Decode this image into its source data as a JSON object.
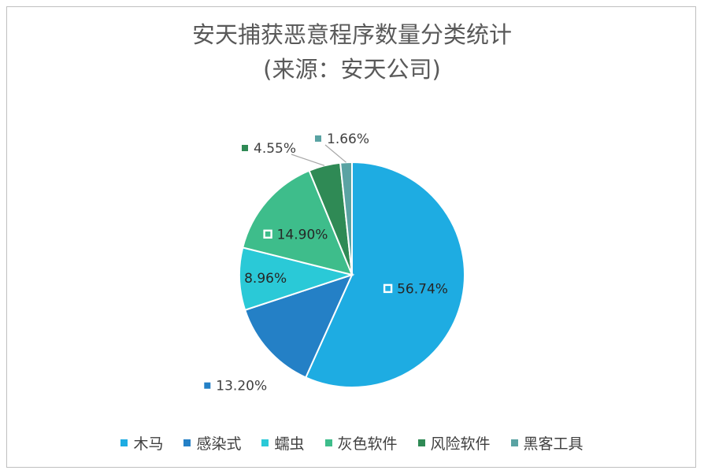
{
  "chart_data": {
    "type": "pie",
    "title": "安天捕获恶意程序数量分类统计",
    "subtitle": "(来源：安天公司)",
    "categories": [
      "木马",
      "感染式",
      "蠕虫",
      "灰色软件",
      "风险软件",
      "黑客工具"
    ],
    "values": [
      56.74,
      13.2,
      8.96,
      14.9,
      4.55,
      1.66
    ],
    "data_labels": [
      "56.74%",
      "13.20%",
      "8.96%",
      "14.90%",
      "4.55%",
      "1.66%"
    ],
    "colors": [
      "#1eace2",
      "#2480c6",
      "#2ac9d7",
      "#3ebd8b",
      "#2f8a55",
      "#5aa3a3"
    ],
    "legend_position": "bottom"
  }
}
